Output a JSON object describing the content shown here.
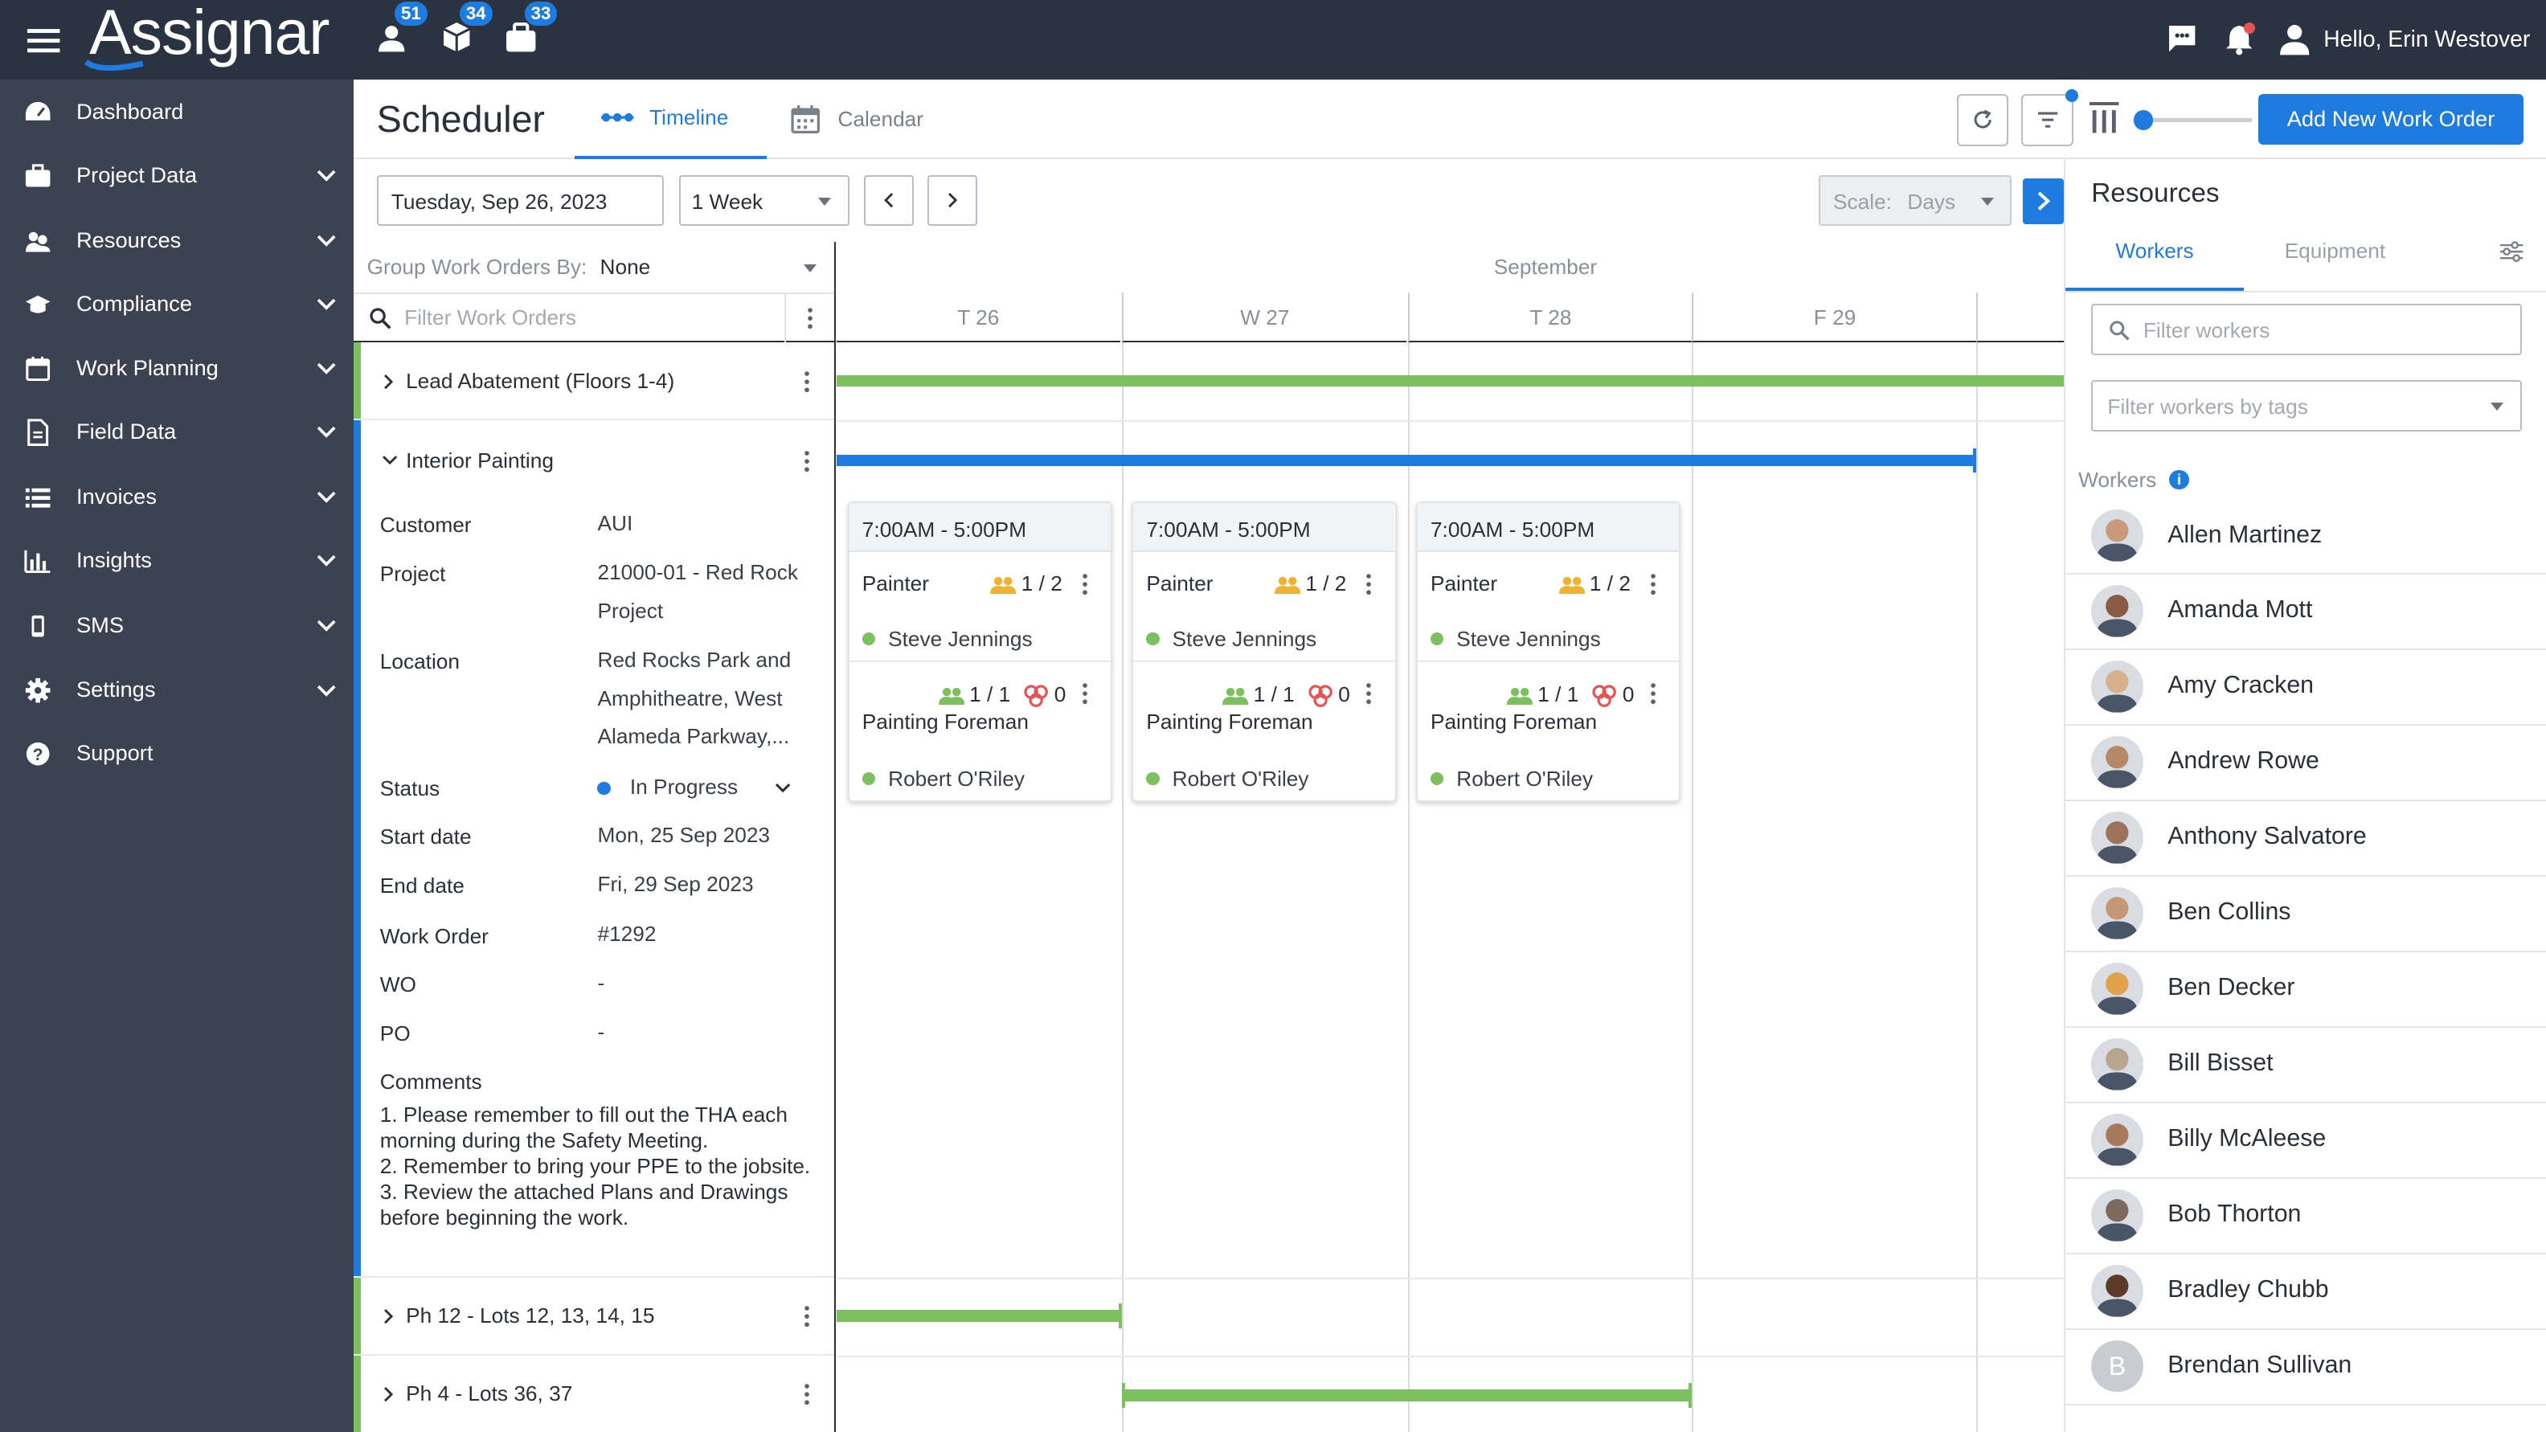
{
  "topbar": {
    "logo": "Assignar",
    "badges": {
      "people": "51",
      "assets": "34",
      "jobs": "33"
    },
    "greeting": "Hello, Erin Westover"
  },
  "sidebar": {
    "items": [
      {
        "label": "Dashboard",
        "icon": "dashboard-icon"
      },
      {
        "label": "Project Data",
        "icon": "briefcase-icon"
      },
      {
        "label": "Resources",
        "icon": "resources-icon"
      },
      {
        "label": "Compliance",
        "icon": "graduation-cap-icon"
      },
      {
        "label": "Work Planning",
        "icon": "calendar-icon"
      },
      {
        "label": "Field Data",
        "icon": "document-icon"
      },
      {
        "label": "Invoices",
        "icon": "list-icon"
      },
      {
        "label": "Insights",
        "icon": "bar-chart-icon"
      },
      {
        "label": "SMS",
        "icon": "mobile-icon"
      },
      {
        "label": "Settings",
        "icon": "gear-icon"
      },
      {
        "label": "Support",
        "icon": "help-icon"
      }
    ]
  },
  "header": {
    "title": "Scheduler",
    "tabs": {
      "timeline": "Timeline",
      "calendar": "Calendar"
    },
    "add_button": "Add New Work Order"
  },
  "toolbar": {
    "date": "Tuesday, Sep 26, 2023",
    "range": "1 Week",
    "scale_label": "Scale:",
    "scale_value": "Days"
  },
  "workorders": {
    "group_by_label": "Group Work Orders By:",
    "group_by_value": "None",
    "filter_placeholder": "Filter Work Orders",
    "rows": [
      {
        "title": "Lead Abatement (Floors 1-4)",
        "color": "#7cc05f"
      },
      {
        "title": "Interior Painting",
        "color": "#1e7be0"
      },
      {
        "title": "Ph 12 - Lots 12, 13, 14, 15",
        "color": "#7cc05f"
      },
      {
        "title": "Ph 4 - Lots 36, 37",
        "color": "#7cc05f"
      }
    ],
    "details": {
      "customer_label": "Customer",
      "customer": "AUI",
      "project_label": "Project",
      "project": "21000-01 - Red Rock Project",
      "location_label": "Location",
      "location": "Red Rocks Park and Amphitheatre, West Alameda Parkway,...",
      "status_label": "Status",
      "status": "In Progress",
      "start_label": "Start date",
      "start": "Mon, 25 Sep 2023",
      "end_label": "End date",
      "end": "Fri, 29 Sep 2023",
      "wo_number_label": "Work Order",
      "wo_number": "#1292",
      "wo_label": "WO",
      "wo": "-",
      "po_label": "PO",
      "po": "-",
      "comments_label": "Comments",
      "comments": [
        "1.  Please remember to fill out the THA each morning during the Safety Meeting.",
        "2.  Remember to bring your PPE to the jobsite.",
        "3.  Review the attached Plans and Drawings before beginning the work."
      ]
    }
  },
  "timeline": {
    "month": "September",
    "days": [
      "T 26",
      "W 27",
      "T 28",
      "F 29"
    ],
    "shifts": [
      {
        "time": "7:00AM - 5:00PM",
        "role1": "Painter",
        "role1_count": "1 / 2",
        "worker1": "Steve Jennings",
        "role2_count": "1 / 1",
        "role2_assets": "0",
        "role2": "Painting Foreman",
        "worker2": "Robert O'Riley"
      },
      {
        "time": "7:00AM - 5:00PM",
        "role1": "Painter",
        "role1_count": "1 / 2",
        "worker1": "Steve Jennings",
        "role2_count": "1 / 1",
        "role2_assets": "0",
        "role2": "Painting Foreman",
        "worker2": "Robert O'Riley"
      },
      {
        "time": "7:00AM - 5:00PM",
        "role1": "Painter",
        "role1_count": "1 / 2",
        "worker1": "Steve Jennings",
        "role2_count": "1 / 1",
        "role2_assets": "0",
        "role2": "Painting Foreman",
        "worker2": "Robert O'Riley"
      }
    ]
  },
  "resources": {
    "title": "Resources",
    "tabs": {
      "workers": "Workers",
      "equipment": "Equipment"
    },
    "filter_placeholder": "Filter workers",
    "tags_placeholder": "Filter workers by tags",
    "section_label": "Workers",
    "workers": [
      "Allen Martinez",
      "Amanda Mott",
      "Amy Cracken",
      "Andrew Rowe",
      "Anthony Salvatore",
      "Ben Collins",
      "Ben Decker",
      "Bill Bisset",
      "Billy McAleese",
      "Bob Thorton",
      "Bradley Chubb",
      "Brendan Sullivan"
    ],
    "initial_avatar": "B"
  },
  "colors": {
    "accent": "#1e7be0",
    "green": "#7cc05f",
    "topbar": "#2a3342",
    "sidebar": "#3b4353"
  }
}
